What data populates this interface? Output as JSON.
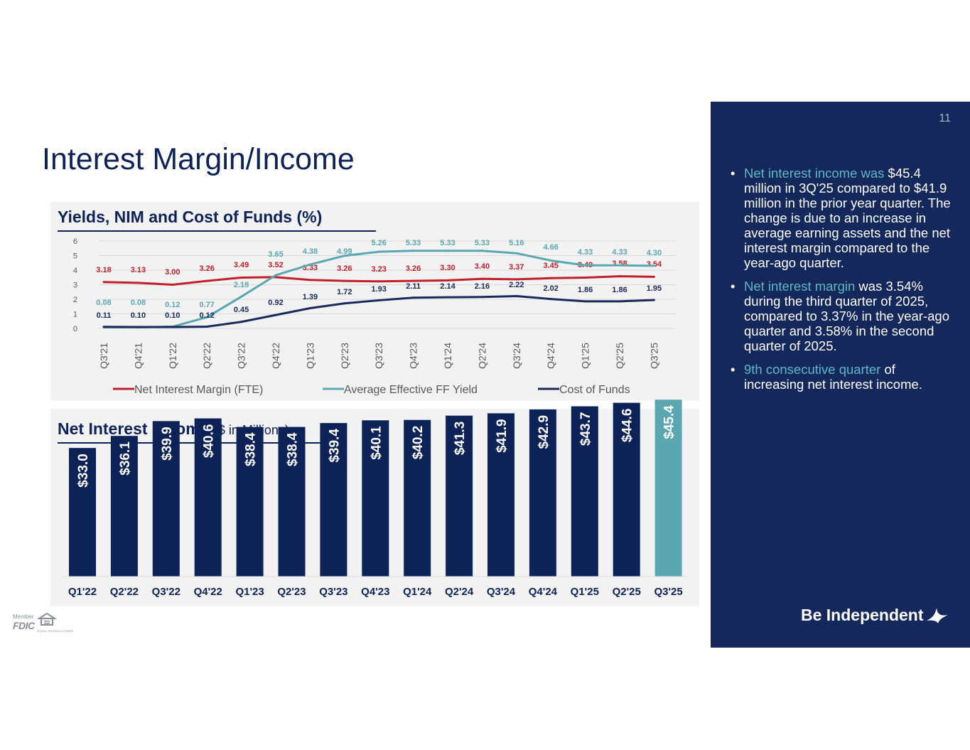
{
  "title": "Interest Margin/Income",
  "page_number": "11",
  "colors": {
    "navy": "#14285c",
    "bar_navy": "#0d2257",
    "teal": "#5aa7b1",
    "nim_red": "#c0202a",
    "cof_navy": "#1a2b5a"
  },
  "chart_data": [
    {
      "type": "line",
      "title": "Yields, NIM and Cost of Funds (%)",
      "categories": [
        "Q3'21",
        "Q4'21",
        "Q1'22",
        "Q2'22",
        "Q3'22",
        "Q4'22",
        "Q1'23",
        "Q2'23",
        "Q3'23",
        "Q4'23",
        "Q1'24",
        "Q2'24",
        "Q3'24",
        "Q4'24",
        "Q1'25",
        "Q2'25",
        "Q3'25"
      ],
      "series": [
        {
          "name": "Net Interest Margin (FTE)",
          "color": "#c0202a",
          "values": [
            3.18,
            3.13,
            3.0,
            3.26,
            3.49,
            3.52,
            3.33,
            3.26,
            3.23,
            3.26,
            3.3,
            3.4,
            3.37,
            3.45,
            3.49,
            3.58,
            3.54
          ],
          "labels": [
            "3.18",
            "3.13",
            "3.00",
            "3.26",
            "3.49",
            "3.52",
            "3.33",
            "3.26",
            "3.23",
            "3.26",
            "3.30",
            "3.40",
            "3.37",
            "3.45",
            "3.49",
            "3.58",
            "3.54"
          ]
        },
        {
          "name": "Average Effective FF Yield",
          "color": "#5aa7b1",
          "values": [
            0.08,
            0.08,
            0.12,
            0.77,
            2.18,
            3.65,
            4.38,
            4.99,
            5.26,
            5.33,
            5.33,
            5.33,
            5.16,
            4.66,
            4.33,
            4.33,
            4.3
          ],
          "labels": [
            "0.08",
            "0.08",
            "0.12",
            "0.77",
            "2.18",
            "3.65",
            "4.38",
            "4.99",
            "5.26",
            "5.33",
            "5.33",
            "5.33",
            "5.16",
            "4.66",
            "4.33",
            "4.33",
            "4.30"
          ]
        },
        {
          "name": "Cost of Funds",
          "color": "#1a2b5a",
          "values": [
            0.11,
            0.1,
            0.1,
            0.12,
            0.45,
            0.92,
            1.39,
            1.72,
            1.93,
            2.11,
            2.14,
            2.16,
            2.22,
            2.02,
            1.86,
            1.86,
            1.95
          ],
          "labels": [
            "0.11",
            "0.10",
            "0.10",
            "0.12",
            "0.45",
            "0.92",
            "1.39",
            "1.72",
            "1.93",
            "2.11",
            "2.14",
            "2.16",
            "2.22",
            "2.02",
            "1.86",
            "1.86",
            "1.95"
          ]
        }
      ],
      "ylim": [
        0,
        6
      ],
      "yticks": [
        "0",
        "1",
        "2",
        "3",
        "4",
        "5",
        "6"
      ],
      "grid": true,
      "legend": "bottom"
    },
    {
      "type": "bar",
      "title": "Net Interest Income",
      "subtitle": "($ in Millions)",
      "categories": [
        "Q1'22",
        "Q2'22",
        "Q3'22",
        "Q4'22",
        "Q1'23",
        "Q2'23",
        "Q3'23",
        "Q4'23",
        "Q1'24",
        "Q2'24",
        "Q3'24",
        "Q4'24",
        "Q1'25",
        "Q2'25",
        "Q3'25"
      ],
      "values": [
        33.0,
        36.1,
        39.9,
        40.6,
        38.4,
        38.4,
        39.4,
        40.1,
        40.2,
        41.3,
        41.9,
        42.9,
        43.7,
        44.6,
        45.4
      ],
      "labels": [
        "$33.0",
        "$36.1",
        "$39.9",
        "$40.6",
        "$38.4",
        "$38.4",
        "$39.4",
        "$40.1",
        "$40.2",
        "$41.3",
        "$41.9",
        "$42.9",
        "$43.7",
        "$44.6",
        "$45.4"
      ],
      "highlight_last": true
    }
  ],
  "sidebar": {
    "bullets": [
      {
        "highlight": "Net interest income was",
        "text": " $45.4 million in 3Q'25 compared to $41.9 million in the prior year quarter. The change is due to an increase in average earning assets and the net interest margin compared to the year-ago quarter."
      },
      {
        "highlight": "Net interest margin",
        "text": " was 3.54% during the third quarter of 2025, compared to 3.37% in the year-ago quarter and 3.58% in the second quarter of 2025."
      },
      {
        "highlight": "9th consecutive quarter",
        "text": " of increasing net interest income."
      }
    ],
    "brand": "Be Independent"
  },
  "footer": {
    "fdic_member": "Member",
    "fdic": "FDIC",
    "equal_housing": "EQUAL HOUSING LENDER"
  }
}
